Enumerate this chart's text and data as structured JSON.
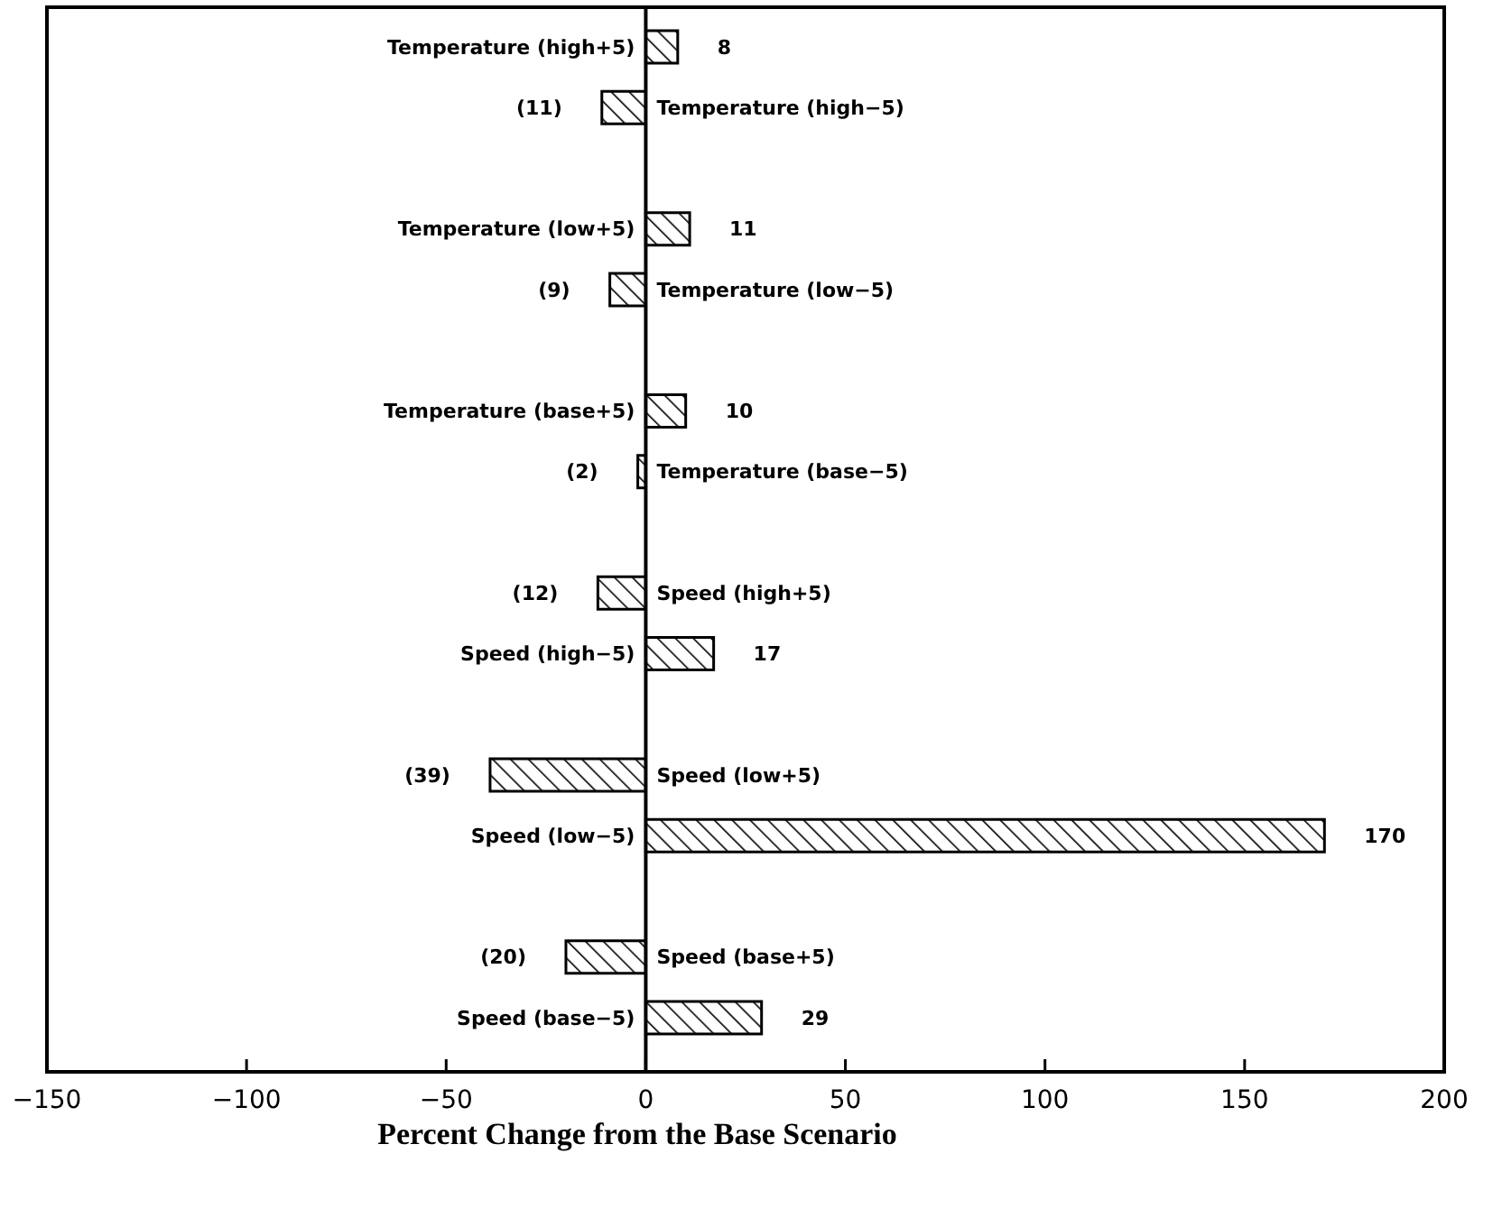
{
  "chart_data": {
    "type": "bar",
    "orientation": "horizontal",
    "xlabel": "Percent Change from the Base Scenario",
    "categories": [
      "Temperature (high+5)",
      "Temperature (high−5)",
      null,
      "Temperature (low+5)",
      "Temperature (low−5)",
      null,
      "Temperature (base+5)",
      "Temperature (base−5)",
      null,
      "Speed (high+5)",
      "Speed (high−5)",
      null,
      "Speed (low+5)",
      "Speed (low−5)",
      null,
      "Speed (base+5)",
      "Speed (base−5)"
    ],
    "values": [
      8,
      -11,
      null,
      11,
      -9,
      null,
      10,
      -2,
      null,
      -12,
      17,
      null,
      -39,
      170,
      null,
      -20,
      29
    ],
    "value_labels": [
      "8",
      "(11)",
      null,
      "11",
      "(9)",
      null,
      "10",
      "(2)",
      null,
      "(12)",
      "17",
      null,
      "(39)",
      "170",
      null,
      "(20)",
      "29"
    ],
    "color": "#000000",
    "xlim": [
      -150,
      200
    ],
    "xticks": [
      -150,
      -100,
      -50,
      0,
      50,
      100,
      150,
      200
    ],
    "grid": false
  }
}
